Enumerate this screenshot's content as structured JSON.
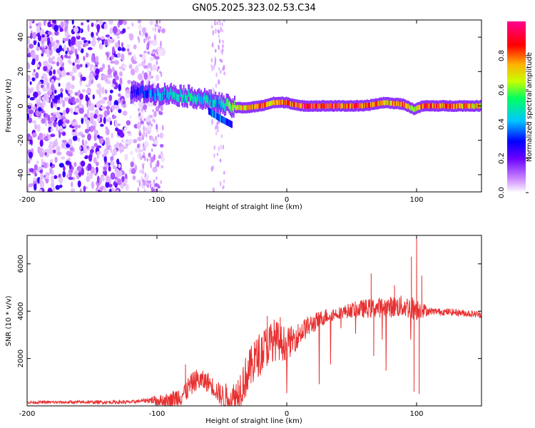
{
  "title": "GN05.2025.323.02.53.C34",
  "chart_data": [
    {
      "type": "heatmap",
      "name": "spectrogram",
      "xlabel": "Height of straight line (km)",
      "ylabel": "Frequency (Hz)",
      "xlim": [
        -200,
        150
      ],
      "ylim": [
        -50,
        50
      ],
      "xticks": [
        -200,
        -100,
        0,
        100
      ],
      "yticks": [
        -40,
        -20,
        0,
        20,
        40
      ],
      "colorbar": {
        "label": "Normalized spectral amplitude",
        "range": [
          0,
          1
        ],
        "ticks": [
          "0.0",
          "0.2",
          "0.4",
          "0.6",
          "0.8"
        ],
        "colors": [
          "#ffffff",
          "#cc88ff",
          "#6a00ff",
          "#0000ff",
          "#00c8ff",
          "#00ff60",
          "#c8ff00",
          "#ffb000",
          "#ff0000",
          "#ff0090"
        ]
      },
      "noise_region_km": [
        -200,
        -95
      ],
      "sparse_bands_km": [
        [
          -115,
          -95
        ],
        [
          -58,
          -48
        ]
      ],
      "ridge": [
        {
          "x": -120,
          "f": 8,
          "a": 0.35
        },
        {
          "x": -110,
          "f": 8,
          "a": 0.4
        },
        {
          "x": -100,
          "f": 7,
          "a": 0.45
        },
        {
          "x": -90,
          "f": 7,
          "a": 0.5
        },
        {
          "x": -80,
          "f": 6,
          "a": 0.55
        },
        {
          "x": -70,
          "f": 5,
          "a": 0.55
        },
        {
          "x": -60,
          "f": 3,
          "a": 0.5
        },
        {
          "x": -50,
          "f": 1,
          "a": 0.5
        },
        {
          "x": -40,
          "f": -1,
          "a": 0.75
        },
        {
          "x": -30,
          "f": -1,
          "a": 0.85
        },
        {
          "x": -20,
          "f": 0,
          "a": 0.9
        },
        {
          "x": -10,
          "f": 2,
          "a": 0.85
        },
        {
          "x": 0,
          "f": 2,
          "a": 0.9
        },
        {
          "x": 10,
          "f": 0,
          "a": 0.95
        },
        {
          "x": 30,
          "f": 0,
          "a": 0.95
        },
        {
          "x": 60,
          "f": 0,
          "a": 0.95
        },
        {
          "x": 75,
          "f": 2,
          "a": 0.8
        },
        {
          "x": 90,
          "f": 1,
          "a": 0.9
        },
        {
          "x": 98,
          "f": -2,
          "a": 0.7
        },
        {
          "x": 105,
          "f": 0,
          "a": 0.95
        },
        {
          "x": 130,
          "f": 0,
          "a": 0.9
        },
        {
          "x": 150,
          "f": 0,
          "a": 0.8
        }
      ],
      "secondary_branch": [
        {
          "x": -60,
          "f": -3,
          "a": 0.4
        },
        {
          "x": -52,
          "f": -7,
          "a": 0.5
        },
        {
          "x": -42,
          "f": -11,
          "a": 0.3
        }
      ]
    },
    {
      "type": "line",
      "name": "snr",
      "xlabel": "Height of straight line (km)",
      "ylabel": "SNR (10 * v/v)",
      "xlim": [
        -200,
        150
      ],
      "ylim": [
        0,
        7200
      ],
      "xticks": [
        -200,
        -100,
        0,
        100
      ],
      "yticks": [
        2000,
        4000,
        6000
      ],
      "color": "#e83030",
      "envelope": [
        {
          "x": -200,
          "y": 150
        },
        {
          "x": -120,
          "y": 160
        },
        {
          "x": -105,
          "y": 250
        },
        {
          "x": -90,
          "y": 200
        },
        {
          "x": -80,
          "y": 500
        },
        {
          "x": -70,
          "y": 1100
        },
        {
          "x": -60,
          "y": 1000
        },
        {
          "x": -50,
          "y": 400
        },
        {
          "x": -40,
          "y": 300
        },
        {
          "x": -30,
          "y": 1400
        },
        {
          "x": -20,
          "y": 2300
        },
        {
          "x": -10,
          "y": 2800
        },
        {
          "x": 0,
          "y": 2600
        },
        {
          "x": 5,
          "y": 2800
        },
        {
          "x": 15,
          "y": 3300
        },
        {
          "x": 30,
          "y": 3800
        },
        {
          "x": 50,
          "y": 4050
        },
        {
          "x": 70,
          "y": 4150
        },
        {
          "x": 90,
          "y": 4200
        },
        {
          "x": 100,
          "y": 4100
        },
        {
          "x": 110,
          "y": 4000
        },
        {
          "x": 130,
          "y": 3950
        },
        {
          "x": 150,
          "y": 3850
        }
      ],
      "noise_amplitude": [
        {
          "x": -200,
          "y": 60
        },
        {
          "x": -110,
          "y": 80
        },
        {
          "x": -80,
          "y": 500
        },
        {
          "x": -55,
          "y": 400
        },
        {
          "x": -35,
          "y": 900
        },
        {
          "x": -10,
          "y": 900
        },
        {
          "x": 10,
          "y": 500
        },
        {
          "x": 40,
          "y": 250
        },
        {
          "x": 60,
          "y": 400
        },
        {
          "x": 100,
          "y": 500
        },
        {
          "x": 110,
          "y": 150
        },
        {
          "x": 150,
          "y": 150
        }
      ],
      "spikes": [
        {
          "x": -78,
          "y": 1750
        },
        {
          "x": -25,
          "y": 2700
        },
        {
          "x": -15,
          "y": 3800
        },
        {
          "x": -5,
          "y": 3750
        },
        {
          "x": 65,
          "y": 5600
        },
        {
          "x": 67,
          "y": 2100
        },
        {
          "x": 83,
          "y": 5100
        },
        {
          "x": 96,
          "y": 6300
        },
        {
          "x": 98,
          "y": 600
        },
        {
          "x": 100,
          "y": 7200
        },
        {
          "x": 102,
          "y": 500
        },
        {
          "x": 104,
          "y": 5500
        }
      ]
    }
  ]
}
